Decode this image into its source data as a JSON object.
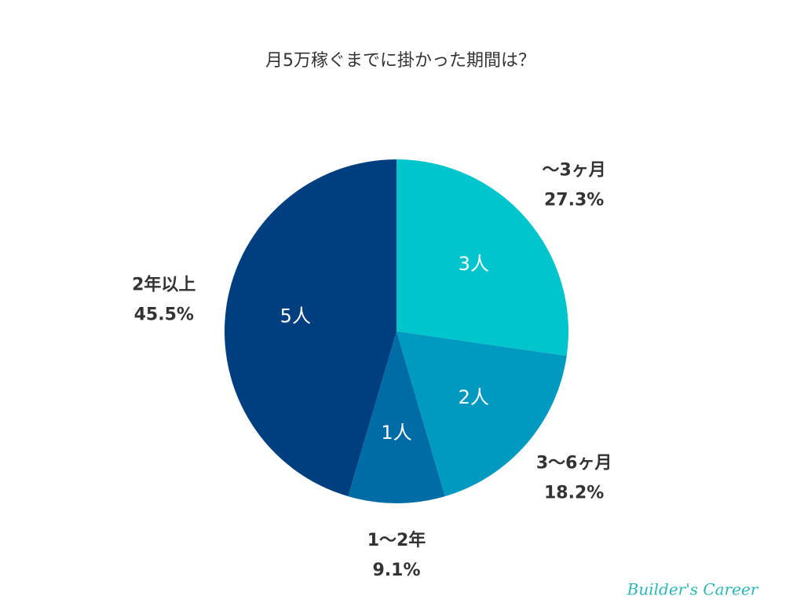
{
  "chart_data": {
    "type": "pie",
    "title": "月5万稼ぐまでに掛かった期間は？",
    "categories": [
      "〜3ヶ月",
      "3〜6ヶ月",
      "1〜2年",
      "2年以上"
    ],
    "values": [
      27.3,
      18.2,
      9.1,
      45.5
    ],
    "value_labels": [
      "27.3%",
      "18.2%",
      "9.1%",
      "45.5%"
    ],
    "counts": [
      3,
      2,
      1,
      5
    ],
    "count_labels": [
      "3人",
      "2人",
      "1人",
      "5人"
    ],
    "colors": [
      "#00c5cd",
      "#0099bf",
      "#006ca6",
      "#003f7f"
    ],
    "watermark": "Builder's Career"
  }
}
